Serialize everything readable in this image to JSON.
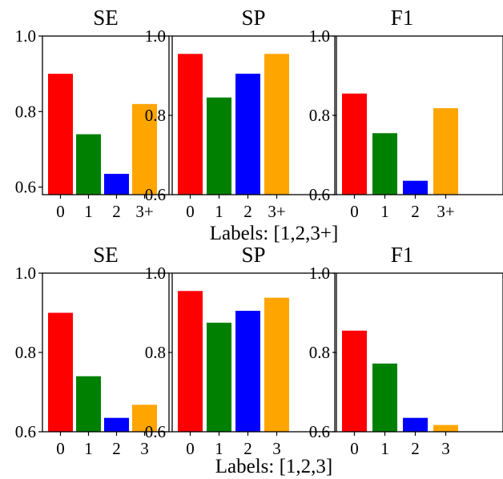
{
  "colors": {
    "c0": "#ff0000",
    "c1": "#008000",
    "c2": "#0000ff",
    "c3": "#ffa500"
  },
  "chart_data": [
    {
      "type": "bar",
      "row": 0,
      "title": "SE",
      "categories": [
        "0",
        "1",
        "2",
        "3+"
      ],
      "values": [
        0.9,
        0.74,
        0.635,
        0.82
      ],
      "ylim": [
        0.58,
        1.0
      ],
      "yticks": [
        0.6,
        0.8,
        1.0
      ],
      "ytick_labels": [
        "0.6",
        "0.8",
        "1.0"
      ],
      "grid": false
    },
    {
      "type": "bar",
      "row": 0,
      "title": "SP",
      "categories": [
        "0",
        "1",
        "2",
        "3+"
      ],
      "values": [
        0.955,
        0.845,
        0.905,
        0.955
      ],
      "ylim": [
        0.6,
        1.0
      ],
      "yticks": [
        0.6,
        0.8,
        1.0
      ],
      "ytick_labels": [
        "0.6",
        "0.8",
        "1.0"
      ],
      "grid": false
    },
    {
      "type": "bar",
      "row": 0,
      "title": "F1",
      "categories": [
        "0",
        "1",
        "2",
        "3+"
      ],
      "values": [
        0.855,
        0.755,
        0.635,
        0.818
      ],
      "ylim": [
        0.6,
        1.0
      ],
      "yticks": [
        0.6,
        0.8,
        1.0
      ],
      "ytick_labels": [
        "0.6",
        "0.8",
        "1.0"
      ],
      "grid": false
    },
    {
      "type": "bar",
      "row": 1,
      "title": "SE",
      "categories": [
        "0",
        "1",
        "2",
        "3"
      ],
      "values": [
        0.9,
        0.74,
        0.635,
        0.668
      ],
      "ylim": [
        0.6,
        1.0
      ],
      "yticks": [
        0.6,
        0.8,
        1.0
      ],
      "ytick_labels": [
        "0.6",
        "0.8",
        "1.0"
      ],
      "grid": false
    },
    {
      "type": "bar",
      "row": 1,
      "title": "SP",
      "categories": [
        "0",
        "1",
        "2",
        "3"
      ],
      "values": [
        0.955,
        0.875,
        0.905,
        0.938
      ],
      "ylim": [
        0.6,
        1.0
      ],
      "yticks": [
        0.6,
        0.8,
        1.0
      ],
      "ytick_labels": [
        "0.6",
        "0.8",
        "1.0"
      ],
      "grid": false
    },
    {
      "type": "bar",
      "row": 1,
      "title": "F1",
      "categories": [
        "0",
        "1",
        "2",
        "3"
      ],
      "values": [
        0.855,
        0.772,
        0.635,
        0.617
      ],
      "ylim": [
        0.6,
        1.0
      ],
      "yticks": [
        0.6,
        0.8,
        1.0
      ],
      "ytick_labels": [
        "0.6",
        "0.8",
        "1.0"
      ],
      "grid": false
    }
  ],
  "row_labels": [
    "Labels: [1,2,3+]",
    "Labels: [1,2,3]"
  ]
}
